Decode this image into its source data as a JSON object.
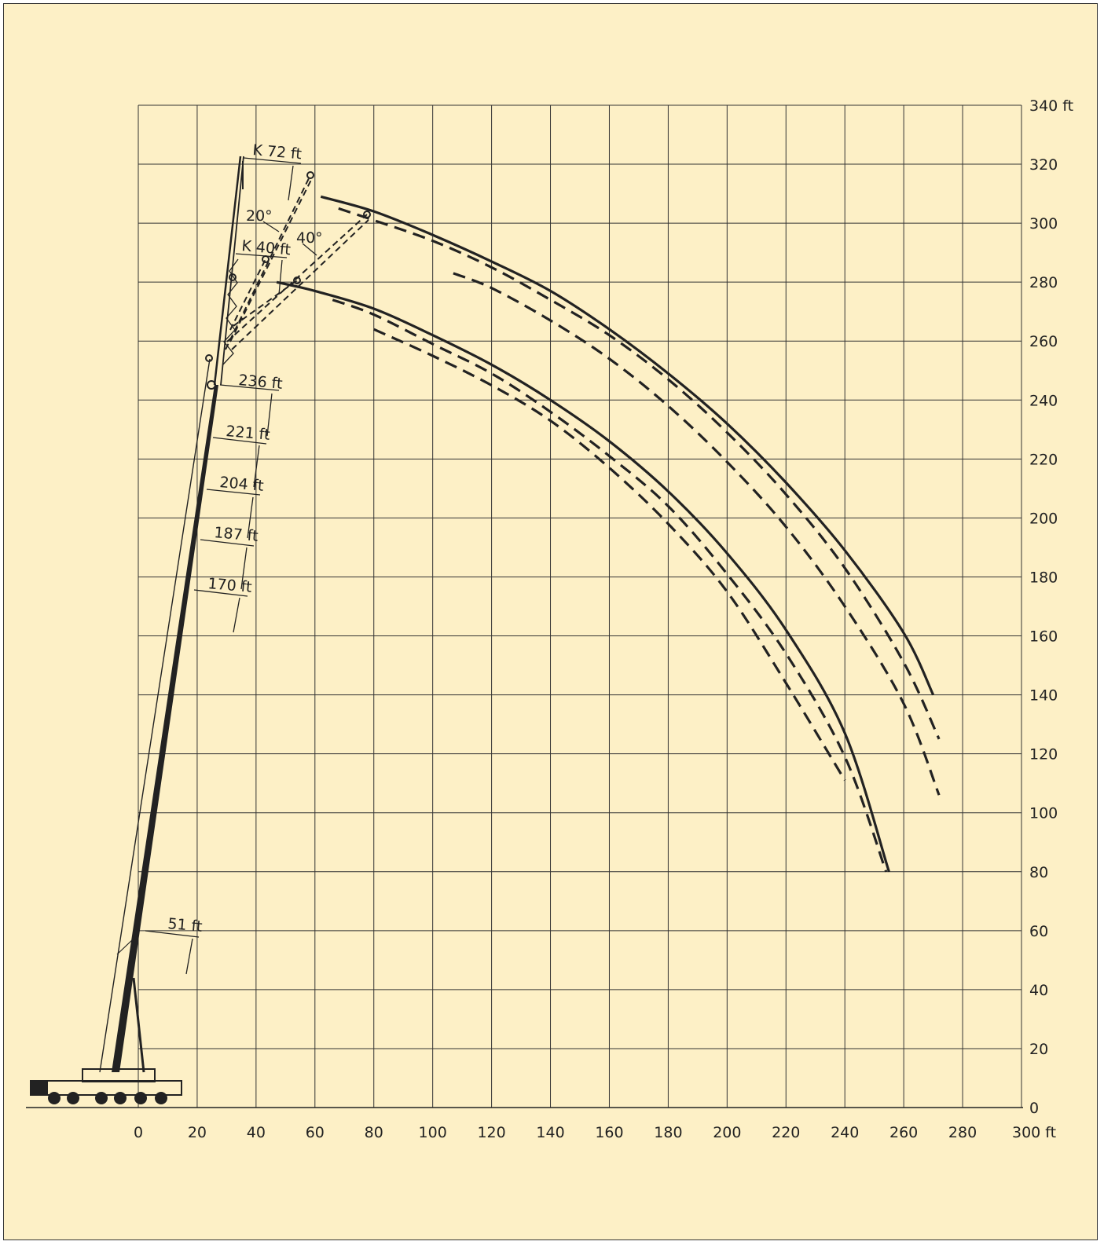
{
  "chart_data": {
    "type": "line",
    "title": "",
    "xlabel": "",
    "ylabel": "",
    "x_unit": "ft",
    "y_unit": "ft",
    "xlim": [
      0,
      300
    ],
    "ylim": [
      0,
      340
    ],
    "grid": true,
    "x_ticks": [
      "0",
      "20",
      "40",
      "60",
      "80",
      "100",
      "120",
      "140",
      "160",
      "180",
      "200",
      "220",
      "240",
      "260",
      "280",
      "300 ft"
    ],
    "y_ticks": [
      "0",
      "20",
      "40",
      "60",
      "80",
      "100",
      "120",
      "140",
      "160",
      "180",
      "200",
      "220",
      "240",
      "260",
      "280",
      "300",
      "320",
      "340 ft"
    ],
    "annotations": [
      {
        "text": "K 72 ft"
      },
      {
        "text": "20°"
      },
      {
        "text": "40°"
      },
      {
        "text": "K 40 ft"
      },
      {
        "text": "236 ft"
      },
      {
        "text": "221 ft"
      },
      {
        "text": "204 ft"
      },
      {
        "text": "187 ft"
      },
      {
        "text": "170 ft"
      },
      {
        "text": "51 ft"
      }
    ],
    "series": [
      {
        "style": "solid",
        "x": [
          62,
          80,
          100,
          120,
          140,
          160,
          180,
          200,
          220,
          240,
          260,
          270
        ],
        "y": [
          309,
          304,
          296,
          287,
          277,
          264,
          249,
          232,
          212,
          189,
          161,
          140
        ]
      },
      {
        "style": "dashed",
        "x": [
          68,
          80,
          100,
          120,
          140,
          160,
          180,
          200,
          220,
          240,
          260,
          272
        ],
        "y": [
          305,
          301,
          294,
          285,
          274,
          262,
          247,
          229,
          208,
          183,
          151,
          125
        ]
      },
      {
        "style": "dashed",
        "x": [
          107,
          120,
          140,
          160,
          180,
          200,
          220,
          240,
          260,
          272
        ],
        "y": [
          283,
          278,
          267,
          254,
          238,
          219,
          197,
          170,
          137,
          106
        ]
      },
      {
        "style": "solid",
        "x": [
          47,
          60,
          80,
          100,
          120,
          140,
          160,
          180,
          200,
          220,
          240,
          255
        ],
        "y": [
          280,
          277,
          271,
          262,
          252,
          240,
          226,
          209,
          188,
          162,
          127,
          80
        ]
      },
      {
        "style": "dashed",
        "x": [
          66,
          80,
          100,
          120,
          140,
          160,
          180,
          200,
          220,
          240,
          254
        ],
        "y": [
          274,
          269,
          259,
          249,
          236,
          221,
          204,
          181,
          154,
          119,
          80
        ]
      },
      {
        "style": "dashed",
        "x": [
          80,
          100,
          120,
          140,
          160,
          180,
          200,
          220,
          240
        ],
        "y": [
          264,
          255,
          245,
          233,
          217,
          198,
          175,
          144,
          111
        ]
      }
    ]
  }
}
